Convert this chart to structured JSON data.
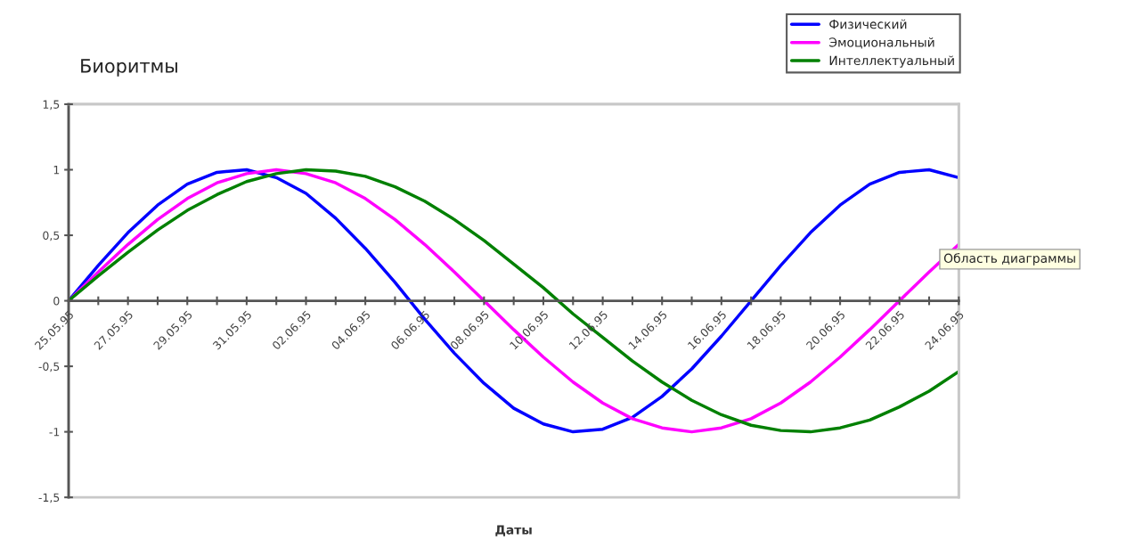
{
  "chart_data": {
    "type": "line",
    "title": "Биоритмы",
    "xlabel": "Даты",
    "categories": [
      "25.05.95",
      null,
      "27.05.95",
      null,
      "29.05.95",
      null,
      "31.05.95",
      null,
      "02.06.95",
      null,
      "04.06.95",
      null,
      "06.06.95",
      null,
      "08.06.95",
      null,
      "10.06.95",
      null,
      "12.06.95",
      null,
      "14.06.95",
      null,
      "16.06.95",
      null,
      "18.06.95",
      null,
      "20.06.95",
      null,
      "22.06.95",
      null,
      "24.06.95"
    ],
    "series": [
      {
        "name": "Физический",
        "color": "#0000ff",
        "values": [
          0,
          0.27,
          0.52,
          0.73,
          0.89,
          0.98,
          1.0,
          0.94,
          0.82,
          0.63,
          0.4,
          0.14,
          -0.14,
          -0.4,
          -0.63,
          -0.82,
          -0.94,
          -1.0,
          -0.98,
          -0.89,
          -0.73,
          -0.52,
          -0.27,
          0,
          0.27,
          0.52,
          0.73,
          0.89,
          0.98,
          1.0,
          0.94
        ]
      },
      {
        "name": "Эмоциональный",
        "color": "#ff00ff",
        "values": [
          0,
          0.22,
          0.43,
          0.62,
          0.78,
          0.9,
          0.97,
          1.0,
          0.97,
          0.9,
          0.78,
          0.62,
          0.43,
          0.22,
          0,
          -0.22,
          -0.43,
          -0.62,
          -0.78,
          -0.9,
          -0.97,
          -1.0,
          -0.97,
          -0.9,
          -0.78,
          -0.62,
          -0.43,
          -0.22,
          0,
          0.22,
          0.43
        ]
      },
      {
        "name": "Интеллектуальный",
        "color": "#008000",
        "values": [
          0,
          0.19,
          0.37,
          0.54,
          0.69,
          0.81,
          0.91,
          0.97,
          1.0,
          0.99,
          0.95,
          0.87,
          0.76,
          0.62,
          0.46,
          0.28,
          0.1,
          -0.1,
          -0.28,
          -0.46,
          -0.62,
          -0.76,
          -0.87,
          -0.95,
          -0.99,
          -1.0,
          -0.97,
          -0.91,
          -0.81,
          -0.69,
          -0.54
        ]
      }
    ],
    "ylim": [
      -1.5,
      1.5
    ],
    "yticks": [
      {
        "value": 1.5,
        "label": "1,5"
      },
      1,
      {
        "value": 0.5,
        "label": "0,5"
      },
      0,
      {
        "value": -0.5,
        "label": "-0,5"
      },
      -1,
      {
        "value": -1.5,
        "label": "-1,5"
      }
    ],
    "grid": false,
    "legend": "top right",
    "marker": "none",
    "line_style": "solid",
    "annotations": [
      "Область диаграммы"
    ]
  }
}
